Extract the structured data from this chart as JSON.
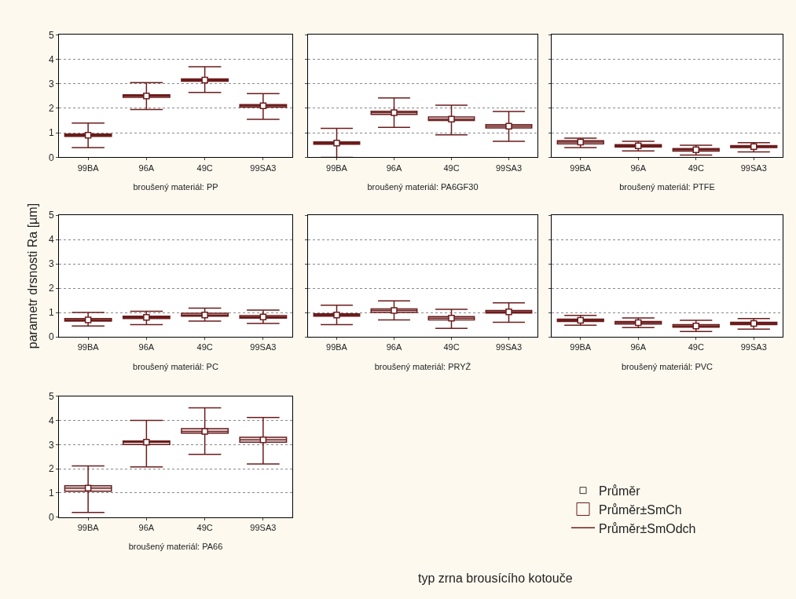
{
  "chart_data": [
    {
      "type": "box",
      "xlabel": "broušený materiál: PP",
      "categories": [
        "99BA",
        "96A",
        "49C",
        "99SA3"
      ],
      "color": "#6b1c1c",
      "marker": "square",
      "grid": "y",
      "ylim": [
        0,
        5
      ],
      "yticks": [
        0,
        1,
        2,
        3,
        4,
        5
      ],
      "boxes": [
        {
          "low": 0.4,
          "q1": 0.85,
          "median": 0.9,
          "q3": 0.95,
          "high": 1.4,
          "mean": 0.9
        },
        {
          "low": 1.95,
          "q1": 2.45,
          "median": 2.5,
          "q3": 2.55,
          "high": 3.05,
          "mean": 2.5
        },
        {
          "low": 2.65,
          "q1": 3.1,
          "median": 3.15,
          "q3": 3.2,
          "high": 3.7,
          "mean": 3.15
        },
        {
          "low": 1.55,
          "q1": 2.05,
          "median": 2.1,
          "q3": 2.15,
          "high": 2.6,
          "mean": 2.1
        }
      ]
    },
    {
      "type": "box",
      "xlabel": "broušený materiál: PA6GF30",
      "categories": [
        "99BA",
        "96A",
        "49C",
        "99SA3"
      ],
      "color": "#6b1c1c",
      "marker": "square",
      "grid": "y",
      "ylim": [
        0,
        5
      ],
      "yticks": [
        0,
        1,
        2,
        3,
        4,
        5
      ],
      "tick_labels": "x",
      "boxes": [
        {
          "low": 0.0,
          "q1": 0.53,
          "median": 0.58,
          "q3": 0.63,
          "high": 1.18,
          "mean": 0.58
        },
        {
          "low": 1.22,
          "q1": 1.75,
          "median": 1.82,
          "q3": 1.88,
          "high": 2.42,
          "mean": 1.82
        },
        {
          "low": 0.92,
          "q1": 1.5,
          "median": 1.56,
          "q3": 1.65,
          "high": 2.13,
          "mean": 1.56
        },
        {
          "low": 0.65,
          "q1": 1.2,
          "median": 1.27,
          "q3": 1.33,
          "high": 1.87,
          "mean": 1.27
        }
      ]
    },
    {
      "type": "box",
      "xlabel": "broušený materiál: PTFE",
      "categories": [
        "99BA",
        "96A",
        "49C",
        "99SA3"
      ],
      "color": "#6b1c1c",
      "marker": "square",
      "grid": "y",
      "ylim": [
        0,
        5
      ],
      "yticks": [
        0,
        1,
        2,
        3,
        4,
        5
      ],
      "tick_labels": "x",
      "boxes": [
        {
          "low": 0.4,
          "q1": 0.55,
          "median": 0.62,
          "q3": 0.68,
          "high": 0.78,
          "mean": 0.62
        },
        {
          "low": 0.26,
          "q1": 0.42,
          "median": 0.47,
          "q3": 0.52,
          "high": 0.65,
          "mean": 0.47
        },
        {
          "low": 0.09,
          "q1": 0.25,
          "median": 0.31,
          "q3": 0.36,
          "high": 0.49,
          "mean": 0.31
        },
        {
          "low": 0.22,
          "q1": 0.4,
          "median": 0.44,
          "q3": 0.48,
          "high": 0.6,
          "mean": 0.44
        }
      ]
    },
    {
      "type": "box",
      "xlabel": "broušený materiál: PC",
      "ylabel": "parametr drsnosti Ra [µm]",
      "categories": [
        "99BA",
        "96A",
        "49C",
        "99SA3"
      ],
      "color": "#6b1c1c",
      "marker": "square",
      "grid": "y",
      "ylim": [
        0,
        5
      ],
      "yticks": [
        0,
        1,
        2,
        3,
        4,
        5
      ],
      "boxes": [
        {
          "low": 0.45,
          "q1": 0.65,
          "median": 0.7,
          "q3": 0.75,
          "high": 1.0,
          "mean": 0.7
        },
        {
          "low": 0.5,
          "q1": 0.75,
          "median": 0.8,
          "q3": 0.85,
          "high": 1.05,
          "mean": 0.8
        },
        {
          "low": 0.65,
          "q1": 0.85,
          "median": 0.9,
          "q3": 0.97,
          "high": 1.18,
          "mean": 0.9
        },
        {
          "low": 0.55,
          "q1": 0.77,
          "median": 0.82,
          "q3": 0.87,
          "high": 1.1,
          "mean": 0.82
        }
      ]
    },
    {
      "type": "box",
      "xlabel": "broušený materiál: PRYŽ",
      "categories": [
        "99BA",
        "96A",
        "49C",
        "99SA3"
      ],
      "color": "#6b1c1c",
      "marker": "square",
      "grid": "y",
      "ylim": [
        0,
        5
      ],
      "yticks": [
        0,
        1,
        2,
        3,
        4,
        5
      ],
      "tick_labels": "x",
      "boxes": [
        {
          "low": 0.5,
          "q1": 0.85,
          "median": 0.9,
          "q3": 0.95,
          "high": 1.3,
          "mean": 0.9
        },
        {
          "low": 0.7,
          "q1": 1.0,
          "median": 1.08,
          "q3": 1.15,
          "high": 1.48,
          "mean": 1.08
        },
        {
          "low": 0.35,
          "q1": 0.7,
          "median": 0.77,
          "q3": 0.83,
          "high": 1.13,
          "mean": 0.77
        },
        {
          "low": 0.6,
          "q1": 0.98,
          "median": 1.03,
          "q3": 1.08,
          "high": 1.4,
          "mean": 1.03
        }
      ]
    },
    {
      "type": "box",
      "xlabel": "broušený materiál: PVC",
      "categories": [
        "99BA",
        "96A",
        "49C",
        "99SA3"
      ],
      "color": "#6b1c1c",
      "marker": "square",
      "grid": "y",
      "ylim": [
        0,
        5
      ],
      "yticks": [
        0,
        1,
        2,
        3,
        4,
        5
      ],
      "tick_labels": "x",
      "boxes": [
        {
          "low": 0.48,
          "q1": 0.63,
          "median": 0.68,
          "q3": 0.73,
          "high": 0.88,
          "mean": 0.68
        },
        {
          "low": 0.38,
          "q1": 0.53,
          "median": 0.58,
          "q3": 0.63,
          "high": 0.78,
          "mean": 0.58
        },
        {
          "low": 0.22,
          "q1": 0.4,
          "median": 0.45,
          "q3": 0.5,
          "high": 0.68,
          "mean": 0.45
        },
        {
          "low": 0.32,
          "q1": 0.5,
          "median": 0.55,
          "q3": 0.6,
          "high": 0.75,
          "mean": 0.55
        }
      ]
    },
    {
      "type": "box",
      "xlabel": "broušený materiál: PA66",
      "categories": [
        "99BA",
        "96A",
        "49C",
        "99SA3"
      ],
      "color": "#6b1c1c",
      "marker": "square",
      "grid": "y",
      "ylim": [
        0,
        5
      ],
      "yticks": [
        0,
        1,
        2,
        3,
        4,
        5
      ],
      "boxes": [
        {
          "low": 0.2,
          "q1": 1.07,
          "median": 1.2,
          "q3": 1.3,
          "high": 2.12,
          "mean": 1.2
        },
        {
          "low": 2.08,
          "q1": 3.0,
          "median": 3.1,
          "q3": 3.15,
          "high": 4.0,
          "mean": 3.1
        },
        {
          "low": 2.6,
          "q1": 3.47,
          "median": 3.55,
          "q3": 3.66,
          "high": 4.52,
          "mean": 3.55
        },
        {
          "low": 2.2,
          "q1": 3.1,
          "median": 3.2,
          "q3": 3.3,
          "high": 4.12,
          "mean": 3.2
        }
      ],
      "annotations": [
        "Průměr",
        "Průměr±SmCh",
        "Průměr±SmOdch",
        "typ zrna brousícího kotouče"
      ]
    }
  ]
}
